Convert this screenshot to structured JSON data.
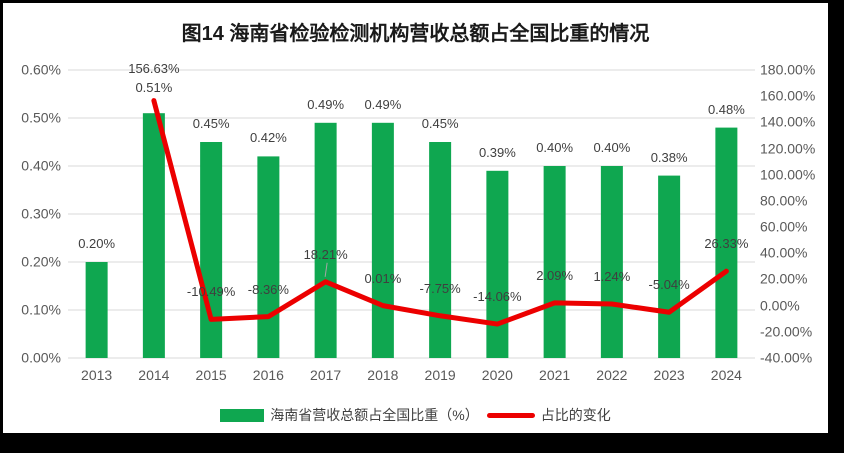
{
  "title": "图14 海南省检验检测机构营收总额占全国比重的情况",
  "colors": {
    "bar": "#0FA750",
    "line": "#EC0000",
    "grid": "#D9D9D9",
    "axis_text": "#595959",
    "label_text": "#3F3F3F",
    "frame": "#000000",
    "background": "#FFFFFF"
  },
  "chart_data": {
    "type": "combo-bar-line",
    "title": "图14 海南省检验检测机构营收总额占全国比重的情况",
    "categories": [
      "2013",
      "2014",
      "2015",
      "2016",
      "2017",
      "2018",
      "2019",
      "2020",
      "2021",
      "2022",
      "2023",
      "2024"
    ],
    "series": [
      {
        "name": "海南省营收总额占全国比重（%）",
        "type": "bar",
        "axis": "left",
        "color": "#0FA750",
        "values": [
          0.2,
          0.51,
          0.45,
          0.42,
          0.49,
          0.49,
          0.45,
          0.39,
          0.4,
          0.4,
          0.38,
          0.48
        ],
        "labels": [
          "0.20%",
          "0.51%",
          "0.45%",
          "0.42%",
          "0.49%",
          "0.49%",
          "0.45%",
          "0.39%",
          "0.40%",
          "0.40%",
          "0.38%",
          "0.48%"
        ]
      },
      {
        "name": "占比的变化",
        "type": "line",
        "axis": "right",
        "color": "#EC0000",
        "values": [
          null,
          156.63,
          -10.49,
          -8.36,
          18.21,
          0.01,
          -7.75,
          -14.06,
          2.09,
          1.24,
          -5.04,
          26.33
        ],
        "labels": [
          null,
          "156.63%",
          "-10.49%",
          "-8.36%",
          "18.21%",
          "0.01%",
          "-7.75%",
          "-14.06%",
          "2.09%",
          "1.24%",
          "-5.04%",
          "26.33%"
        ]
      }
    ],
    "left_axis": {
      "min": 0,
      "max": 0.6,
      "ticks": [
        "0.60%",
        "0.50%",
        "0.40%",
        "0.30%",
        "0.20%",
        "0.10%",
        "0.00%"
      ]
    },
    "right_axis": {
      "min": -40,
      "max": 180,
      "ticks": [
        "180.00%",
        "160.00%",
        "140.00%",
        "120.00%",
        "100.00%",
        "80.00%",
        "60.00%",
        "40.00%",
        "20.00%",
        "0.00%",
        "-20.00%",
        "-40.00%"
      ]
    },
    "grid": "horizontal",
    "legend_position": "bottom",
    "legend": [
      {
        "label": "海南省营收总额占全国比重（%）",
        "swatch": "bar"
      },
      {
        "label": "占比的变化",
        "swatch": "line"
      }
    ]
  }
}
